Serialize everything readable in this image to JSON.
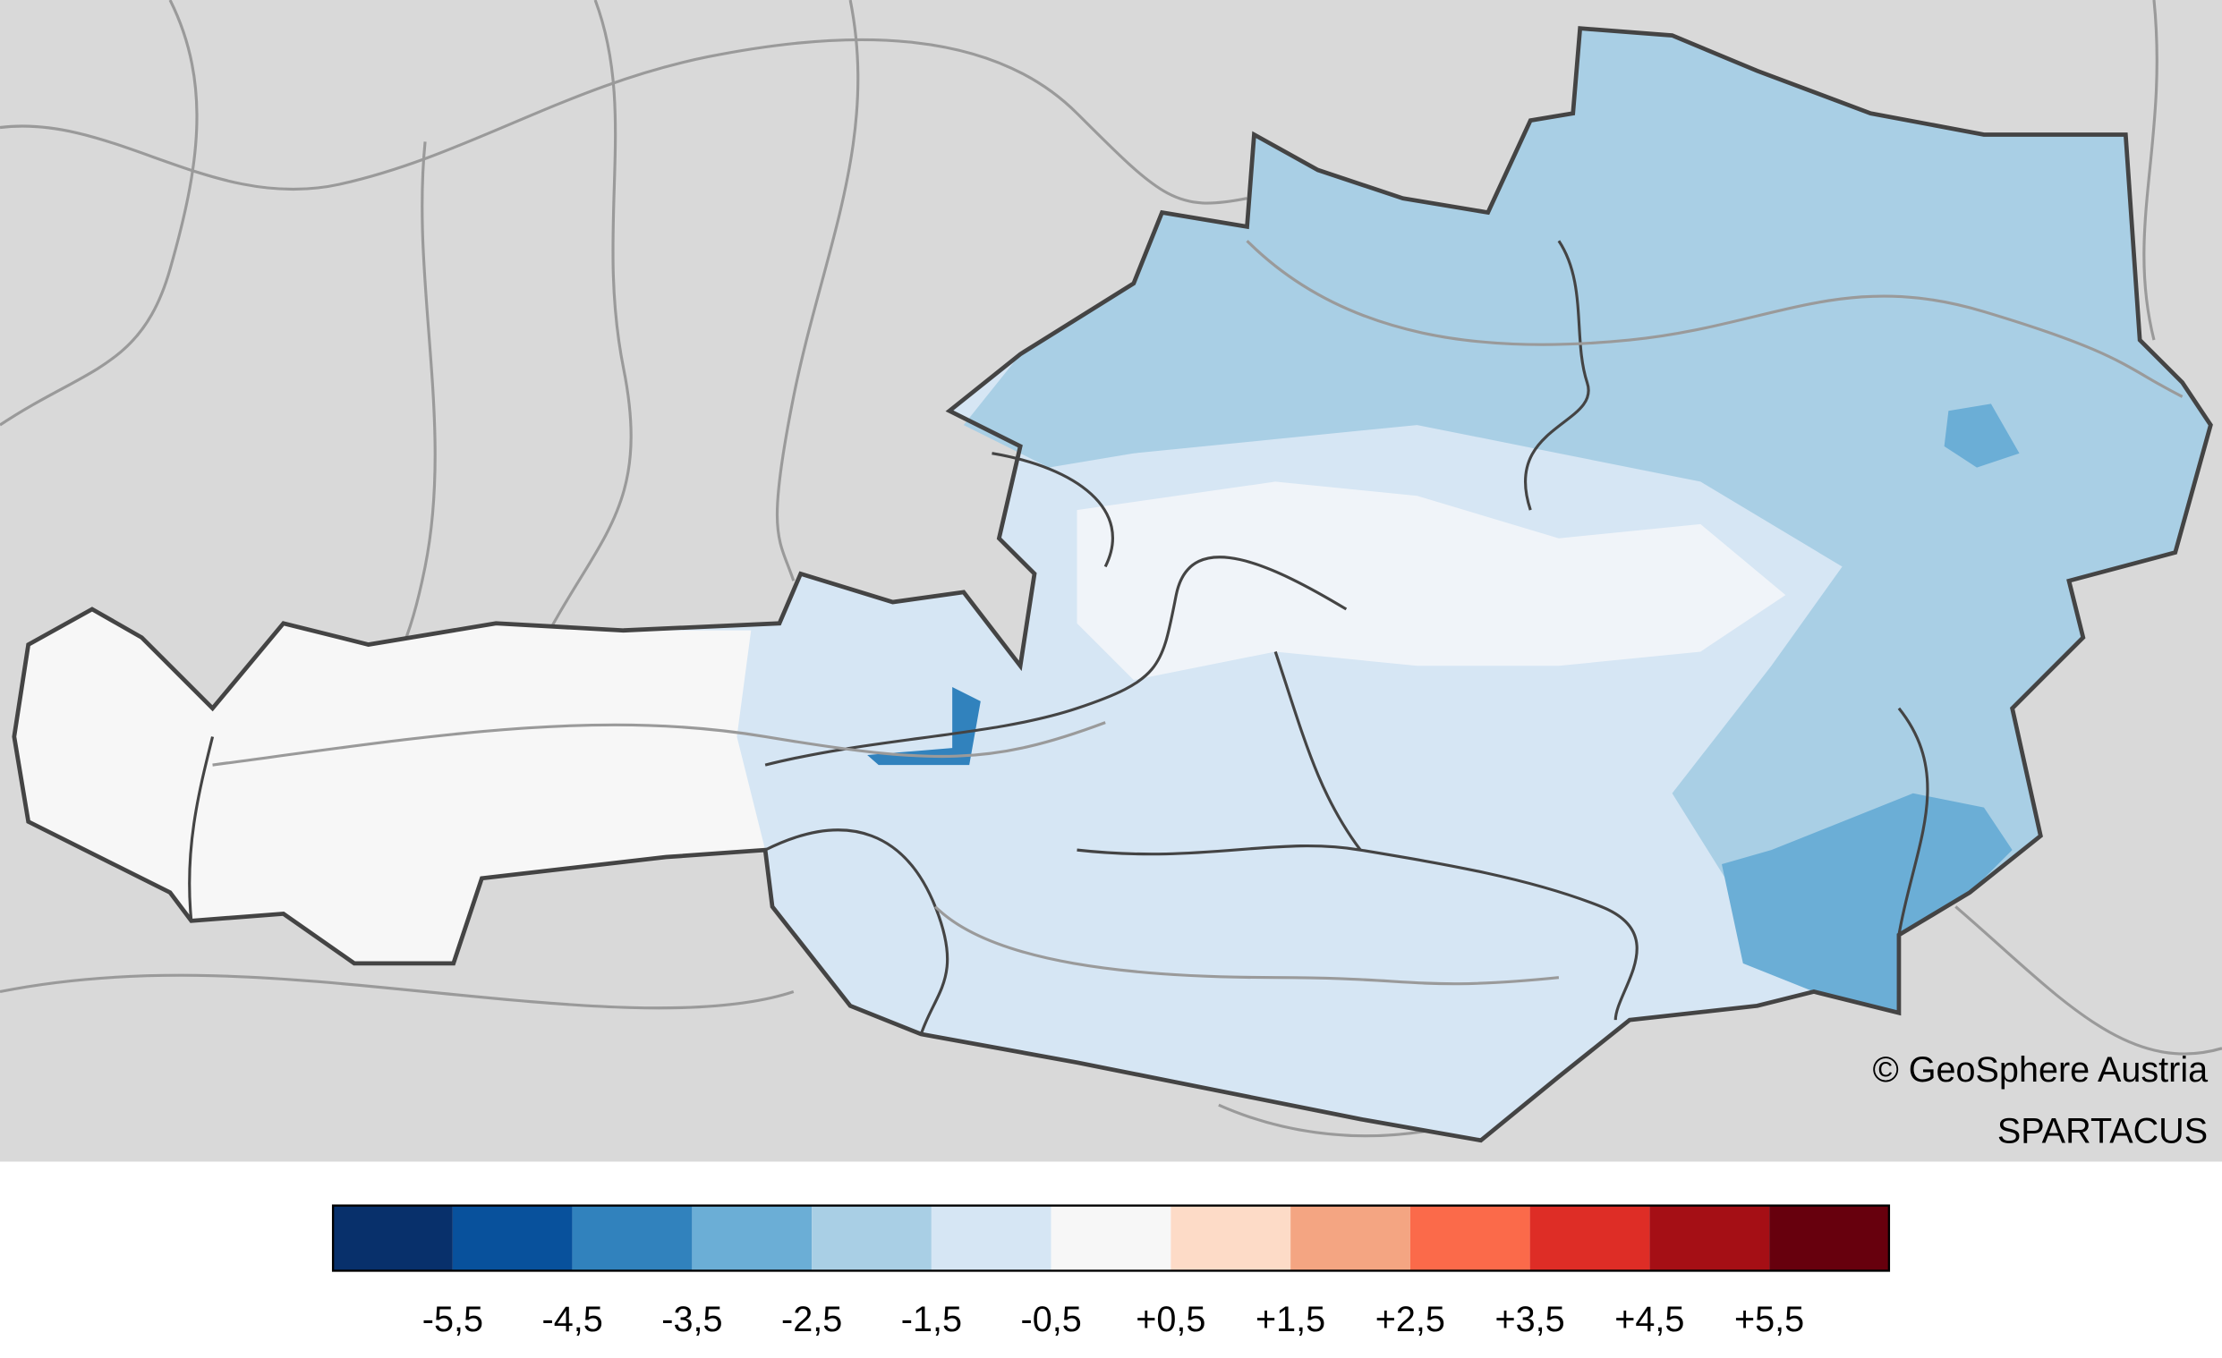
{
  "attribution": {
    "copyright": "© GeoSphere Austria",
    "dataset": "SPARTACUS"
  },
  "legend": {
    "colors": [
      "#08306b",
      "#08519c",
      "#3182bd",
      "#6baed6",
      "#a9cfe5",
      "#d6e6f4",
      "#f7f7f7",
      "#fddbc7",
      "#f4a582",
      "#fb6a4a",
      "#de2d26",
      "#a50f15",
      "#67000d"
    ],
    "labels": [
      "-5,5",
      "-4,5",
      "-3,5",
      "-2,5",
      "-1,5",
      "-0,5",
      "+0,5",
      "+1,5",
      "+2,5",
      "+3,5",
      "+4,5",
      "+5,5"
    ]
  }
}
